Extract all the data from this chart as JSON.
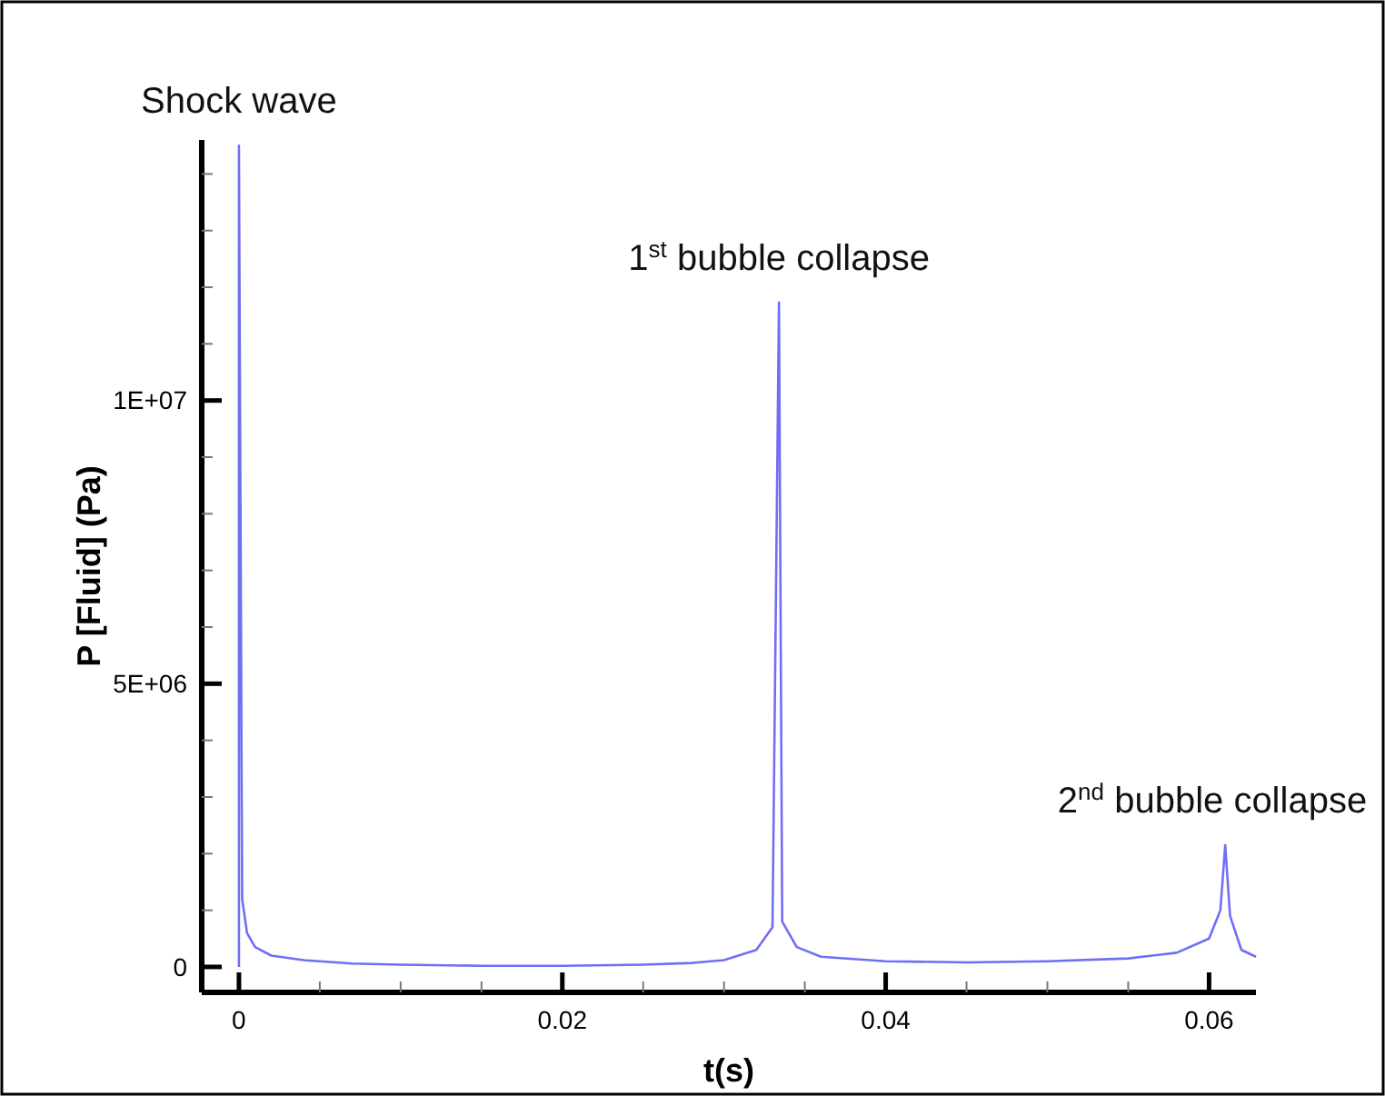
{
  "chart_data": {
    "type": "line",
    "xlabel": "t(s)",
    "ylabel": "P [Fluid] (Pa)",
    "xlim": [
      -0.0023,
      0.0629
    ],
    "ylim": [
      -450000,
      14600000
    ],
    "xticks": [
      0,
      {
        "value": 0.005,
        "label": null
      },
      {
        "value": 0.01,
        "label": null
      },
      {
        "value": 0.015,
        "label": null
      },
      0.02,
      {
        "value": 0.025,
        "label": null
      },
      {
        "value": 0.03,
        "label": null
      },
      {
        "value": 0.035,
        "label": null
      },
      0.04,
      {
        "value": 0.045,
        "label": null
      },
      {
        "value": 0.05,
        "label": null
      },
      {
        "value": 0.055,
        "label": null
      },
      0.06
    ],
    "yticks": [
      0,
      {
        "value": 1000000,
        "label": null
      },
      {
        "value": 2000000,
        "label": null
      },
      {
        "value": 3000000,
        "label": null
      },
      {
        "value": 4000000,
        "label": null
      },
      {
        "value": 5000000,
        "label": "5E+06"
      },
      {
        "value": 6000000,
        "label": null
      },
      {
        "value": 7000000,
        "label": null
      },
      {
        "value": 8000000,
        "label": null
      },
      {
        "value": 9000000,
        "label": null
      },
      {
        "value": 10000000,
        "label": "1E+07"
      },
      {
        "value": 11000000,
        "label": null
      },
      {
        "value": 12000000,
        "label": null
      },
      {
        "value": 13000000,
        "label": null
      },
      {
        "value": 14000000,
        "label": null
      }
    ],
    "grid": false,
    "marker": "none",
    "line_style": "solid",
    "annotations": [
      {
        "text": "Shock wave",
        "x": 0,
        "y": 14500000
      },
      {
        "text": "1$^{st}$ bubble collapse",
        "x": 0.0334,
        "y": 11730000
      },
      {
        "text": "2$^{nd}$ bubble collapse",
        "x": 0.061,
        "y": 2150000
      }
    ],
    "series": [
      {
        "color": "#6f6ff5",
        "x": [
          0,
          0,
          0.0002,
          0.0005,
          0.001,
          0.002,
          0.004,
          0.007,
          0.01,
          0.015,
          0.02,
          0.025,
          0.028,
          0.03,
          0.032,
          0.033,
          0.0334,
          0.0336,
          0.0345,
          0.036,
          0.04,
          0.045,
          0.05,
          0.055,
          0.058,
          0.06,
          0.0607,
          0.061,
          0.0613,
          0.062,
          0.0629
        ],
        "values": [
          0,
          14500000,
          1200000,
          600000,
          350000,
          200000,
          120000,
          60000,
          40000,
          20000,
          20000,
          40000,
          70000,
          120000,
          300000,
          700000,
          11730000,
          800000,
          350000,
          180000,
          100000,
          80000,
          100000,
          150000,
          250000,
          500000,
          1000000,
          2150000,
          900000,
          300000,
          180000
        ]
      }
    ]
  }
}
